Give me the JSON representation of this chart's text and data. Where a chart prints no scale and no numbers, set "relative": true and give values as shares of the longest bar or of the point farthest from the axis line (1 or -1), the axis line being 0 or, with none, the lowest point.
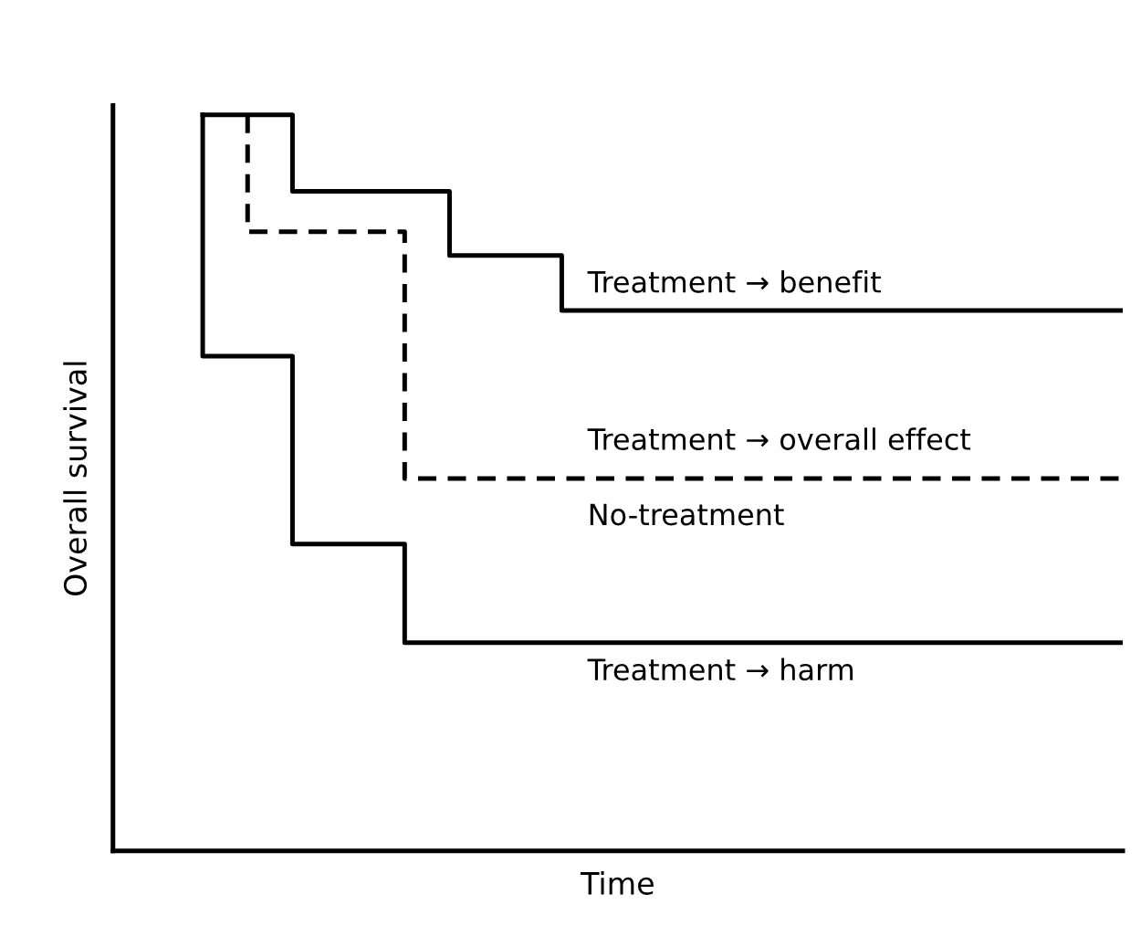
{
  "chart_data": {
    "type": "step",
    "relative": true,
    "xlabel": "Time",
    "ylabel": "Overall survival",
    "tick_labels": false,
    "legend": false,
    "marker": "none",
    "categories": [
      null,
      null,
      null,
      null,
      null,
      null,
      null,
      null,
      null,
      null,
      null,
      null,
      null,
      null,
      null,
      null,
      null,
      null,
      null,
      null,
      null,
      null,
      null,
      null,
      null,
      null,
      null,
      null,
      null,
      null,
      null,
      null,
      null,
      null,
      null,
      null,
      null,
      null,
      null,
      null,
      null,
      null,
      null,
      null,
      null,
      null
    ],
    "series": [
      {
        "color": "#000000",
        "line_style": "solid",
        "values": [
          null,
          null,
          null,
          null,
          1,
          1,
          1,
          1,
          1,
          0.896,
          0.896,
          0.896,
          0.896,
          0.896,
          0.896,
          0.896,
          0.809,
          0.809,
          0.809,
          0.809,
          0.809,
          0.734,
          0.734,
          0.734,
          0.734,
          0.734,
          0.734,
          0.734,
          0.734,
          0.734,
          0.734,
          0.734,
          0.734,
          0.734,
          0.734,
          0.734,
          0.734,
          0.734,
          0.734,
          0.734,
          0.734,
          0.734,
          0.734,
          0.734,
          0.734,
          0.734
        ]
      },
      {
        "color": "#000000",
        "line_style": "dashed",
        "values": [
          null,
          null,
          null,
          null,
          null,
          null,
          1,
          0.841,
          0.841,
          0.841,
          0.841,
          0.841,
          0.841,
          0.841,
          0.506,
          0.506,
          0.506,
          0.506,
          0.506,
          0.506,
          0.506,
          0.506,
          0.506,
          0.506,
          0.506,
          0.506,
          0.506,
          0.506,
          0.506,
          0.506,
          0.506,
          0.506,
          0.506,
          0.506,
          0.506,
          0.506,
          0.506,
          0.506,
          0.506,
          0.506,
          0.506,
          0.506,
          0.506,
          0.506,
          0.506,
          0.506
        ]
      },
      {
        "color": "#000000",
        "line_style": "solid",
        "values": [
          null,
          null,
          null,
          null,
          1,
          0.672,
          0.672,
          0.672,
          0.672,
          0.417,
          0.417,
          0.417,
          0.417,
          0.417,
          0.283,
          0.283,
          0.283,
          0.283,
          0.283,
          0.283,
          0.283,
          0.283,
          0.283,
          0.283,
          0.283,
          0.283,
          0.283,
          0.283,
          0.283,
          0.283,
          0.283,
          0.283,
          0.283,
          0.283,
          0.283,
          0.283,
          0.283,
          0.283,
          0.283,
          0.283,
          0.283,
          0.283,
          0.283,
          0.283,
          0.283,
          0.283
        ]
      }
    ],
    "annotations": [
      "Treatment → benefit",
      "Treatment → overall effect",
      "No-treatment",
      "Treatment → harm"
    ]
  }
}
